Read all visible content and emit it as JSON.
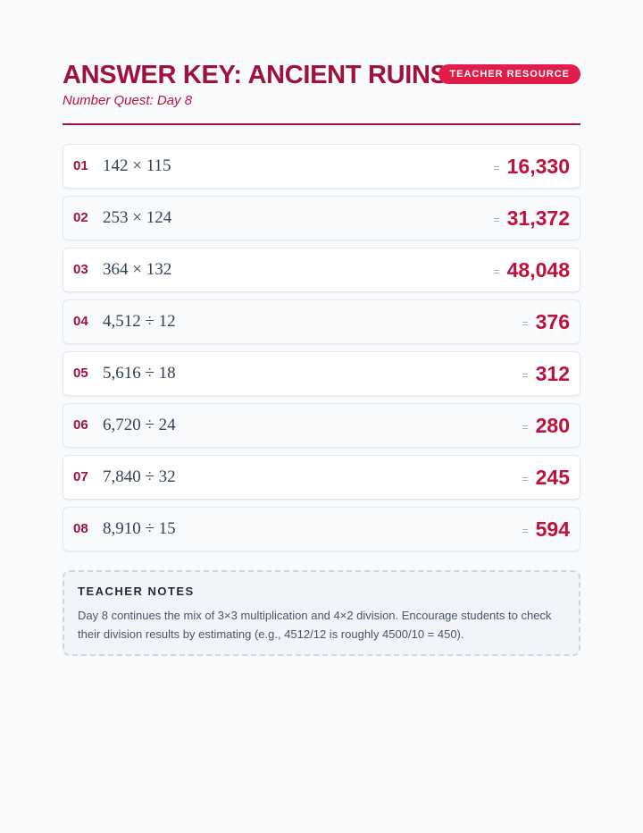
{
  "header": {
    "title": "ANSWER KEY: ANCIENT RUINS",
    "subtitle": "Number Quest: Day 8",
    "badge": "TEACHER RESOURCE"
  },
  "equals_sign": "=",
  "problems": [
    {
      "number": "01",
      "expression": "142 × 115",
      "answer": "16,330"
    },
    {
      "number": "02",
      "expression": "253 × 124",
      "answer": "31,372"
    },
    {
      "number": "03",
      "expression": "364 × 132",
      "answer": "48,048"
    },
    {
      "number": "04",
      "expression": "4,512 ÷ 12",
      "answer": "376"
    },
    {
      "number": "05",
      "expression": "5,616 ÷ 18",
      "answer": "312"
    },
    {
      "number": "06",
      "expression": "6,720 ÷ 24",
      "answer": "280"
    },
    {
      "number": "07",
      "expression": "7,840 ÷ 32",
      "answer": "245"
    },
    {
      "number": "08",
      "expression": "8,910 ÷ 15",
      "answer": "594"
    }
  ],
  "notes": {
    "title": "TEACHER NOTES",
    "text": "Day 8 continues the mix of 3×3 multiplication and 4×2 division. Encourage students to check their division results by estimating (e.g., 4512/12 is roughly 4500/10 = 450)."
  }
}
